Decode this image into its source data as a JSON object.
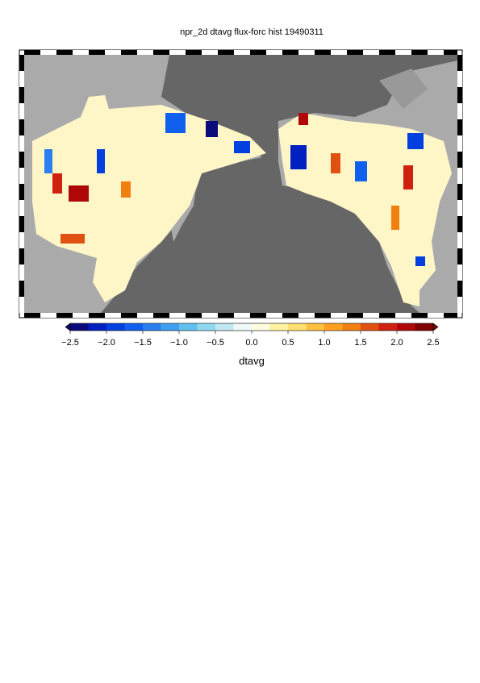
{
  "map": {
    "title": "npr_2d dtavg flux-forc hist 19490311",
    "colorbar": {
      "label": "dtavg",
      "lim": [
        -2.5,
        2.5
      ],
      "ticks": [
        {
          "value": -2.5,
          "label": "−2.5"
        },
        {
          "value": -2.0,
          "label": "−2.0"
        },
        {
          "value": -1.5,
          "label": "−1.5"
        },
        {
          "value": -1.0,
          "label": "−1.0"
        },
        {
          "value": -0.5,
          "label": "−0.5"
        },
        {
          "value": 0,
          "label": "0.0"
        },
        {
          "value": 0.5,
          "label": "0.5"
        },
        {
          "value": 1.0,
          "label": "1.0"
        },
        {
          "value": 1.5,
          "label": "1.5"
        },
        {
          "value": 2.0,
          "label": "2.0"
        },
        {
          "value": 2.5,
          "label": "2.5"
        }
      ],
      "colors": [
        "#0a0a7a",
        "#0020c0",
        "#0040e0",
        "#1060f0",
        "#2a80f0",
        "#40a0f0",
        "#60c0f0",
        "#90d8f0",
        "#c0e8f0",
        "#f0f8f8",
        "#fffce0",
        "#fff3a0",
        "#ffe070",
        "#ffc040",
        "#ffa020",
        "#f08010",
        "#e05010",
        "#d02010",
        "#b00808",
        "#800000"
      ]
    }
  }
}
